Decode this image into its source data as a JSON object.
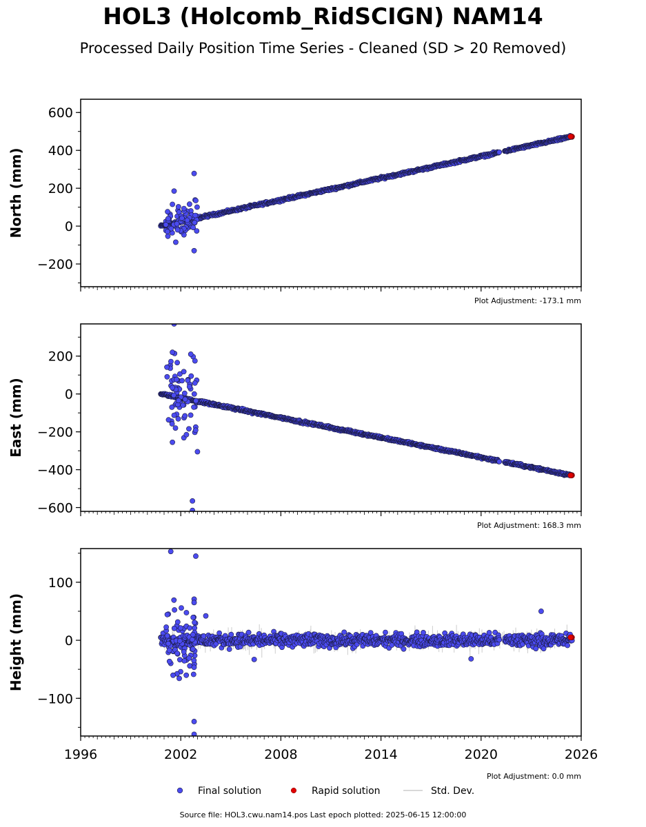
{
  "title": "HOL3 (Holcomb_RidSCIGN) NAM14",
  "subtitle": "Processed Daily Position Time Series - Cleaned (SD > 20 Removed)",
  "footer": "Source file: HOL3.cwu.nam14.pos  Last epoch plotted: 2025-06-15 12:00:00",
  "colors": {
    "final": "#4b4bf0",
    "rapid": "#e00000",
    "stddev": "#cccccc",
    "edge": "#1a1a40"
  },
  "legend": {
    "final": "Final solution",
    "rapid": "Rapid solution",
    "std": "Std. Dev."
  },
  "chart_data": [
    {
      "type": "scatter",
      "ylabel": "North (mm)",
      "adjustment": "Plot Adjustment: -173.1 mm",
      "xlim": [
        1996,
        2026
      ],
      "ylim": [
        -320,
        670
      ],
      "yticks": [
        600,
        400,
        200,
        0,
        -200
      ],
      "ytick_labels": [
        "600",
        "400",
        "200",
        "0",
        "−200"
      ],
      "trend": {
        "start": [
          2000.8,
          0
        ],
        "end": [
          2025.45,
          473
        ]
      },
      "scatter_band": {
        "from": 2001.1,
        "to": 2003.0,
        "min": -130,
        "max": 280
      },
      "outliers": [
        [
          2001.6,
          185
        ],
        [
          2002.8,
          278
        ],
        [
          2002.9,
          135
        ],
        [
          2002.8,
          -130
        ],
        [
          2001.7,
          -85
        ],
        [
          2001.5,
          115
        ]
      ],
      "rapid_end": [
        2025.45,
        473
      ]
    },
    {
      "type": "scatter",
      "ylabel": "East (mm)",
      "adjustment": "Plot Adjustment: 168.3 mm",
      "xlim": [
        1996,
        2026
      ],
      "ylim": [
        -620,
        370
      ],
      "yticks": [
        200,
        0,
        -200,
        -400,
        -600
      ],
      "ytick_labels": [
        "200",
        "0",
        "−200",
        "−400",
        "−600"
      ],
      "trend": {
        "start": [
          2000.8,
          0
        ],
        "end": [
          2025.45,
          -430
        ]
      },
      "scatter_band": {
        "from": 2001.1,
        "to": 2003.0,
        "min": -620,
        "max": 370
      },
      "outliers": [
        [
          2001.6,
          370
        ],
        [
          2001.5,
          220
        ],
        [
          2002.6,
          210
        ],
        [
          2002.7,
          -565
        ],
        [
          2002.7,
          -615
        ],
        [
          2001.5,
          -255
        ],
        [
          2003.0,
          -305
        ]
      ],
      "rapid_end": [
        2025.45,
        -430
      ]
    },
    {
      "type": "scatter",
      "ylabel": "Height (mm)",
      "adjustment": "Plot Adjustment: 0.0 mm",
      "xlim": [
        1996,
        2026
      ],
      "ylim": [
        -165,
        158
      ],
      "yticks": [
        100,
        0,
        -100
      ],
      "ytick_labels": [
        "100",
        "0",
        "−100"
      ],
      "trend": {
        "start": [
          2000.8,
          0
        ],
        "end": [
          2025.45,
          0
        ]
      },
      "scatter_band": {
        "from": 2001.1,
        "to": 2003.0,
        "min": -160,
        "max": 150
      },
      "outliers": [
        [
          2001.4,
          153
        ],
        [
          2002.9,
          145
        ],
        [
          2002.8,
          65
        ],
        [
          2002.8,
          -140
        ],
        [
          2002.8,
          -162
        ],
        [
          2006.4,
          -33
        ],
        [
          2019.4,
          -32
        ],
        [
          2023.6,
          50
        ],
        [
          2003.5,
          42
        ]
      ],
      "rapid_end": [
        2025.45,
        5
      ]
    }
  ],
  "xticks": [
    1996,
    2002,
    2008,
    2014,
    2020,
    2026
  ],
  "xtick_labels": [
    "1996",
    "2002",
    "2008",
    "2014",
    "2020",
    "2026"
  ]
}
